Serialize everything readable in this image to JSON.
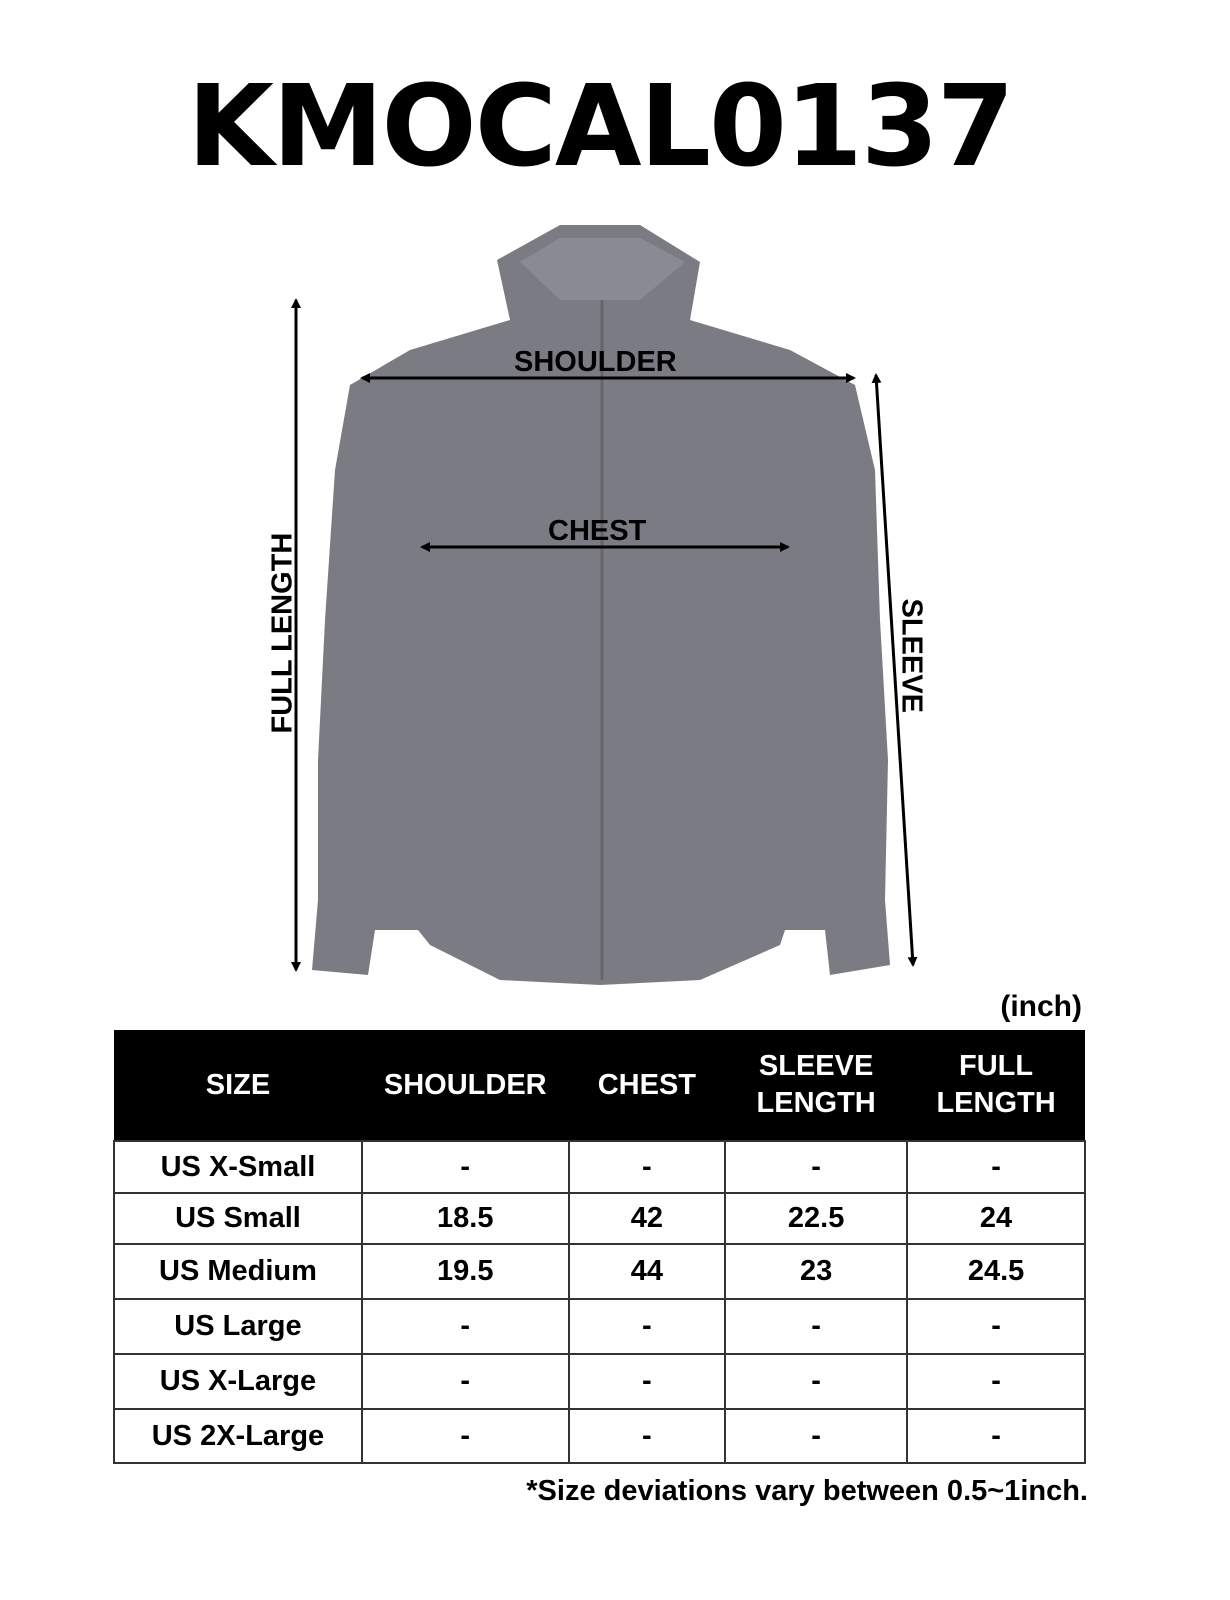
{
  "title": "KMOCAL0137",
  "garment_color": "#7b7b84",
  "measure_labels": {
    "shoulder": "SHOULDER",
    "chest": "CHEST",
    "full_length": "FULL LENGTH",
    "sleeve": "SLEEVE"
  },
  "unit": "(inch)",
  "table": {
    "headers": [
      "SIZE",
      "SHOULDER",
      "CHEST",
      "SLEEVE LENGTH",
      "FULL LENGTH"
    ],
    "rows": [
      [
        "US X-Small",
        "-",
        "-",
        "-",
        "-"
      ],
      [
        "US Small",
        "18.5",
        "42",
        "22.5",
        "24"
      ],
      [
        "US Medium",
        "19.5",
        "44",
        "23",
        "24.5"
      ],
      [
        "US Large",
        "-",
        "-",
        "-",
        "-"
      ],
      [
        "US X-Large",
        "-",
        "-",
        "-",
        "-"
      ],
      [
        "US 2X-Large",
        "-",
        "-",
        "-",
        "-"
      ]
    ]
  },
  "note": "*Size deviations vary between 0.5~1inch."
}
